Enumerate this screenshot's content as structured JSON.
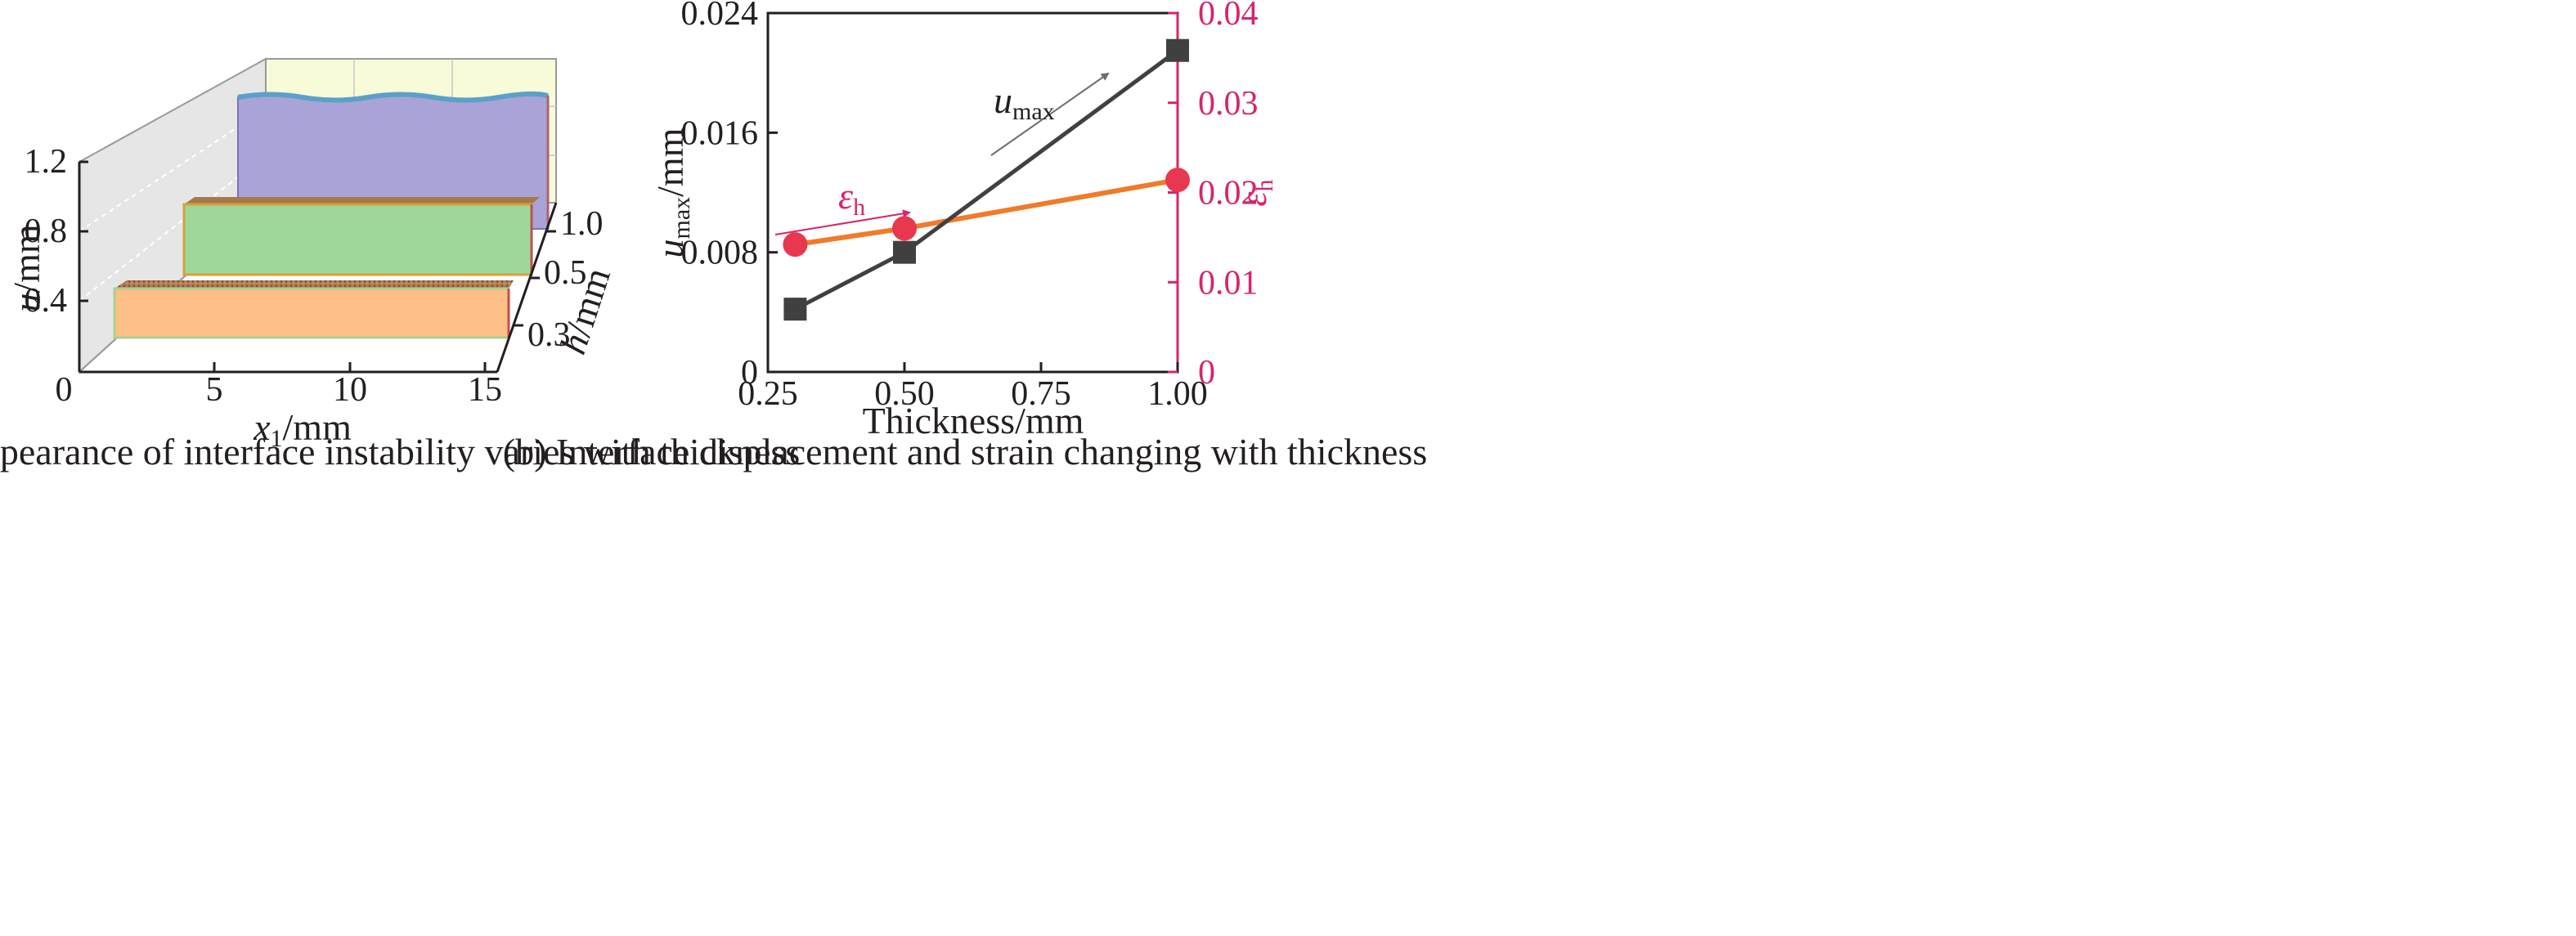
{
  "colors": {
    "left_axis": "#231f20",
    "right_axis": "#d6246e",
    "umax_series": "#404040",
    "eh_series_line": "#f07b2a",
    "eh_series_marker": "#e8384f",
    "slab_0_3": "#fdbf85",
    "slab_0_5": "#9dd89a",
    "slab_1_0": "#a9a3d8",
    "back_wall": "#f7fbd8",
    "side_wall": "#e6e6e6"
  },
  "panel_a": {
    "caption": "(a) The appearance of interface instability varies with thickness",
    "u_label_var": "u",
    "u_label_unit": "/mm",
    "x_label_var": "x",
    "x_label_sub": "1",
    "x_label_unit": "/mm",
    "h_label_var": "h",
    "h_label_unit": "/mm",
    "u_ticks": [
      "0.4",
      "0.8",
      "1.2"
    ],
    "x_ticks": [
      "0",
      "5",
      "10",
      "15"
    ],
    "h_ticks": [
      "0.3",
      "0.5",
      "1.0"
    ]
  },
  "panel_b": {
    "caption": "(b) Interface displacement and strain changing with thickness",
    "xlabel": "Thickness/mm",
    "ylabel_left_var": "u",
    "ylabel_left_sub": "max",
    "ylabel_left_unit": "/mm",
    "ylabel_right_var": "ε",
    "ylabel_right_sub": "h",
    "x_ticks": [
      "0.25",
      "0.50",
      "0.75",
      "1.00"
    ],
    "left_ticks": [
      "0",
      "0.008",
      "0.016",
      "0.024"
    ],
    "right_ticks": [
      "0",
      "0.01",
      "0.02",
      "0.03",
      "0.04"
    ],
    "annot_umax_var": "u",
    "annot_umax_sub": "max",
    "annot_eh_var": "ε",
    "annot_eh_sub": "h"
  },
  "chart_data": [
    {
      "type": "bar",
      "categories": [
        "0.3",
        "0.5",
        "1.0"
      ],
      "series": [
        {
          "values": [
            0.47,
            0.85,
            1.18
          ]
        }
      ],
      "xlabel": "x1/mm",
      "ylabel": "u/mm",
      "zlabel": "h/mm",
      "x_ticks": [
        0,
        5,
        10,
        15
      ],
      "u_ticks": [
        0.4,
        0.8,
        1.2
      ],
      "h_ticks": [
        0.3,
        0.5,
        1.0
      ],
      "ylim": [
        0,
        1.2
      ],
      "xlim": [
        0,
        15
      ],
      "grid": true
    },
    {
      "type": "line",
      "x": [
        0.3,
        0.5,
        1.0
      ],
      "series": [
        {
          "name": "u_max",
          "axis": "left",
          "marker": "square",
          "values": [
            0.0042,
            0.008,
            0.0215
          ]
        },
        {
          "name": "ε_h",
          "axis": "right",
          "marker": "circle",
          "values": [
            0.0142,
            0.016,
            0.0214
          ]
        }
      ],
      "xlabel": "Thickness/mm",
      "ylabel": "u_max/mm",
      "ylabel_right": "ε_h",
      "xlim": [
        0.25,
        1.0
      ],
      "ylim": [
        0,
        0.024
      ],
      "ylim_right": [
        0,
        0.04
      ],
      "grid": false
    }
  ]
}
